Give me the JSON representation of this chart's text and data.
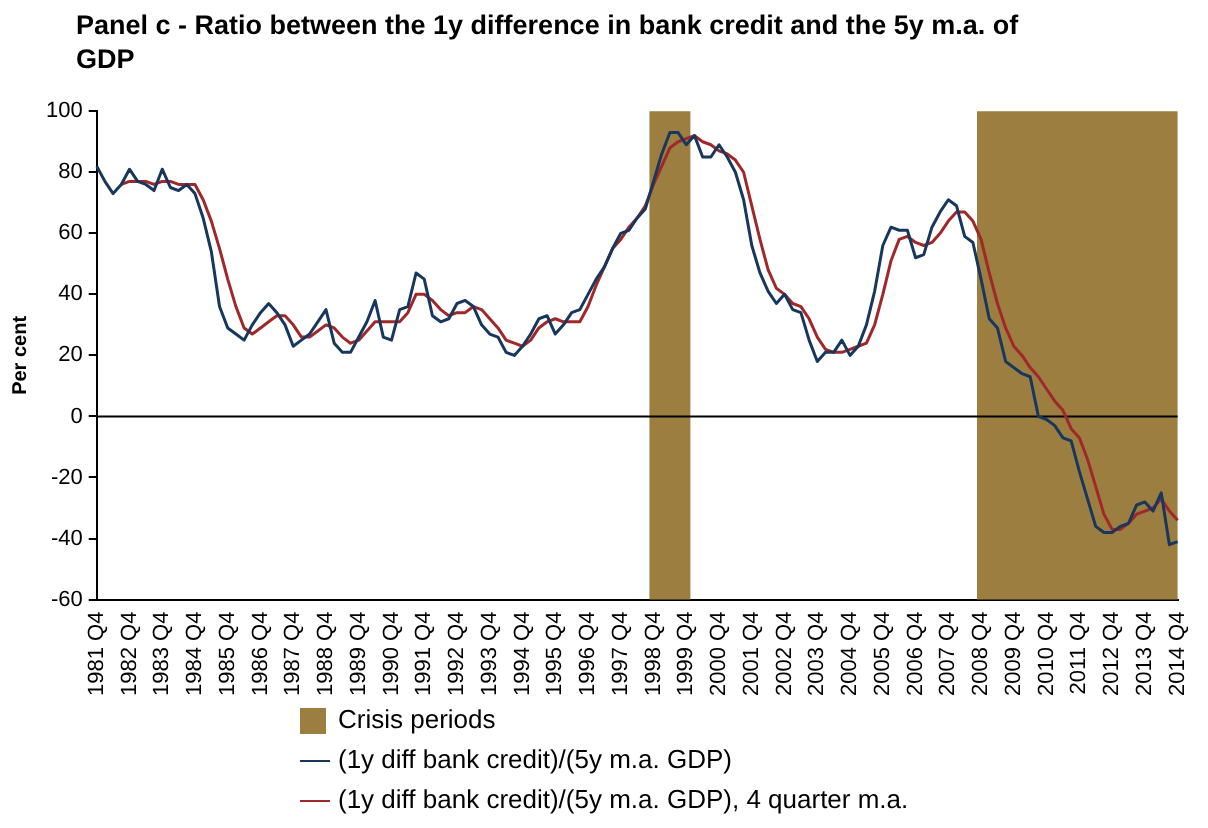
{
  "chart_data": {
    "type": "line",
    "title": "Panel c - Ratio between the 1y difference in bank credit and the 5y m.a. of GDP",
    "ylabel": "Per cent",
    "categories": [
      "1981 Q4",
      null,
      null,
      null,
      "1982 Q4",
      null,
      null,
      null,
      "1983 Q4",
      null,
      null,
      null,
      "1984 Q4",
      null,
      null,
      null,
      "1985 Q4",
      null,
      null,
      null,
      "1986 Q4",
      null,
      null,
      null,
      "1987 Q4",
      null,
      null,
      null,
      "1988 Q4",
      null,
      null,
      null,
      "1989 Q4",
      null,
      null,
      null,
      "1990 Q4",
      null,
      null,
      null,
      "1991 Q4",
      null,
      null,
      null,
      "1992 Q4",
      null,
      null,
      null,
      "1993 Q4",
      null,
      null,
      null,
      "1994 Q4",
      null,
      null,
      null,
      "1995 Q4",
      null,
      null,
      null,
      "1996 Q4",
      null,
      null,
      null,
      "1997 Q4",
      null,
      null,
      null,
      "1998 Q4",
      null,
      null,
      null,
      "1999 Q4",
      null,
      null,
      null,
      "2000 Q4",
      null,
      null,
      null,
      "2001 Q4",
      null,
      null,
      null,
      "2002 Q4",
      null,
      null,
      null,
      "2003 Q4",
      null,
      null,
      null,
      "2004 Q4",
      null,
      null,
      null,
      "2005 Q4",
      null,
      null,
      null,
      "2006 Q4",
      null,
      null,
      null,
      "2007 Q4",
      null,
      null,
      null,
      "2008 Q4",
      null,
      null,
      null,
      "2009 Q4",
      null,
      null,
      null,
      "2010 Q4",
      null,
      null,
      null,
      "2011 Q4",
      null,
      null,
      null,
      "2012 Q4",
      null,
      null,
      null,
      "2013 Q4",
      null,
      null,
      null,
      "2014 Q4"
    ],
    "series": [
      {
        "name": "(1y diff bank credit)/(5y m.a. GDP)",
        "color": "#17375e",
        "values": [
          82,
          77,
          73,
          76,
          81,
          77,
          76,
          74,
          81,
          75,
          74,
          76,
          73,
          65,
          54,
          36,
          29,
          27,
          25,
          30,
          34,
          37,
          34,
          30,
          23,
          25,
          27,
          31,
          35,
          24,
          21,
          21,
          26,
          31,
          38,
          26,
          25,
          35,
          36,
          47,
          45,
          33,
          31,
          32,
          37,
          38,
          36,
          30,
          27,
          26,
          21,
          20,
          23,
          27,
          32,
          33,
          27,
          30,
          34,
          35,
          40,
          45,
          49,
          55,
          60,
          61,
          65,
          68,
          77,
          86,
          93,
          93,
          89,
          92,
          85,
          85,
          89,
          85,
          80,
          71,
          56,
          47,
          41,
          37,
          40,
          35,
          34,
          25,
          18,
          21,
          21,
          25,
          20,
          23,
          30,
          41,
          56,
          62,
          61,
          61,
          52,
          53,
          62,
          67,
          71,
          69,
          59,
          57,
          45,
          32,
          29,
          18,
          16,
          14,
          13,
          0,
          -1,
          -3,
          -7,
          -8,
          -18,
          -27,
          -36,
          -38,
          -38,
          -36,
          -35,
          -29,
          -28,
          -31,
          -25,
          -42,
          -41
        ]
      },
      {
        "name": "(1y diff bank credit)/(5y m.a. GDP), 4 quarter m.a.",
        "color": "#a0282a",
        "values": [
          null,
          null,
          null,
          76,
          77,
          77,
          77,
          76,
          77,
          77,
          76,
          76,
          76,
          71,
          64,
          55,
          45,
          36,
          29,
          27,
          29,
          31,
          33,
          33,
          30,
          26,
          26,
          28,
          30,
          29,
          26,
          24,
          25,
          28,
          31,
          31,
          31,
          31,
          34,
          40,
          40,
          38,
          35,
          33,
          34,
          34,
          36,
          35,
          32,
          29,
          25,
          24,
          23,
          25,
          29,
          31,
          32,
          31,
          31,
          31,
          36,
          43,
          49,
          55,
          58,
          62,
          65,
          69,
          76,
          82,
          88,
          90,
          91,
          92,
          90,
          89,
          87,
          86,
          84,
          80,
          69,
          58,
          48,
          42,
          40,
          37,
          36,
          32,
          26,
          22,
          21,
          21,
          22,
          23,
          24,
          30,
          40,
          51,
          58,
          59,
          57,
          56,
          57,
          60,
          64,
          67,
          67,
          64,
          58,
          47,
          37,
          29,
          23,
          20,
          16,
          13,
          9,
          5,
          2,
          -4,
          -7,
          -14,
          -23,
          -32,
          -37,
          -37,
          -35,
          -32,
          -31,
          -30,
          -27,
          -31,
          -34
        ]
      }
    ],
    "ylim": [
      -60,
      100
    ],
    "yticks": [
      -60,
      -40,
      -20,
      0,
      20,
      40,
      60,
      80,
      100
    ],
    "grid": false,
    "legend": "bottom",
    "ref_lines": [
      {
        "axis": "y",
        "value": 0,
        "color": "#000000"
      }
    ],
    "bands": [
      {
        "axis": "x",
        "from": "1998 Q4",
        "to": "1999 Q4",
        "label": "Crisis periods",
        "color": "#9c7e41"
      },
      {
        "axis": "x",
        "from": "2008 Q4",
        "to": "2014 Q4",
        "color": "#9c7e41"
      }
    ]
  }
}
